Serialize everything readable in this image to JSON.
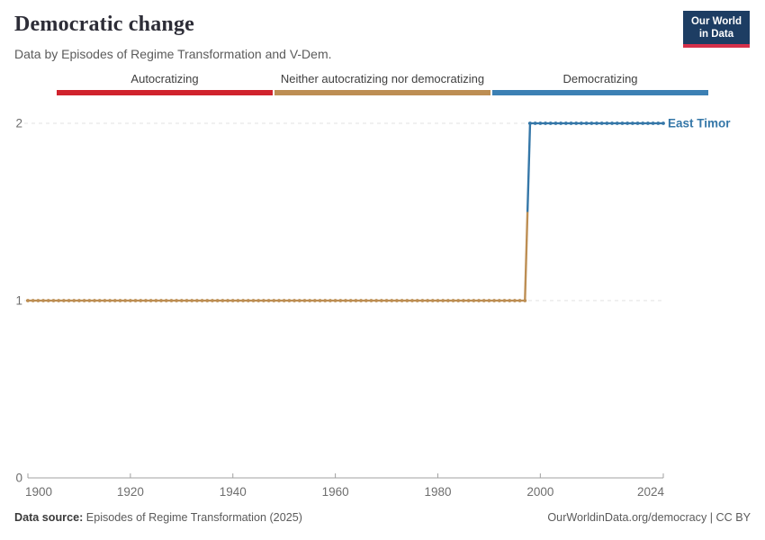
{
  "header": {
    "title": "Democratic change",
    "subtitle": "Data by Episodes of Regime Transformation and V-Dem.",
    "logo": {
      "line1": "Our World",
      "line2": "in Data",
      "bg_color": "#1d3d63",
      "accent_color": "#d5304a"
    }
  },
  "legend": {
    "items": [
      {
        "label": "Autocratizing",
        "color": "#d0232d"
      },
      {
        "label": "Neither autocratizing nor democratizing",
        "color": "#bd8e53"
      },
      {
        "label": "Democratizing",
        "color": "#3c80b4"
      }
    ]
  },
  "chart_data": {
    "type": "line",
    "title": "Democratic change",
    "entity": "East Timor",
    "entity_color": "#3577a8",
    "xlim": [
      1900,
      2024
    ],
    "ylim": [
      0,
      2
    ],
    "x_ticks": [
      1900,
      1920,
      1940,
      1960,
      1980,
      2000,
      2024
    ],
    "y_ticks": [
      0,
      1,
      2
    ],
    "grid": "dashed horizontal gridlines at y=1 and y=2",
    "marker": "dot per year",
    "series": [
      {
        "name": "East Timor",
        "segments": [
          {
            "category": "Neither autocratizing nor democratizing",
            "color": "#bd8e53",
            "start_year": 1900,
            "end_year": 1997,
            "value": 1
          },
          {
            "category": "Democratizing",
            "color": "#3577a8",
            "start_year": 1998,
            "end_year": 2024,
            "value": 2
          }
        ]
      }
    ],
    "colors": {
      "grid": "#e0e0e0",
      "axis": "#a0a0a0",
      "tick_text": "#6e6e6e"
    }
  },
  "footer": {
    "source_label": "Data source:",
    "source_value": " Episodes of Regime Transformation (2025)",
    "credit": "OurWorldinData.org/democracy | CC BY"
  }
}
